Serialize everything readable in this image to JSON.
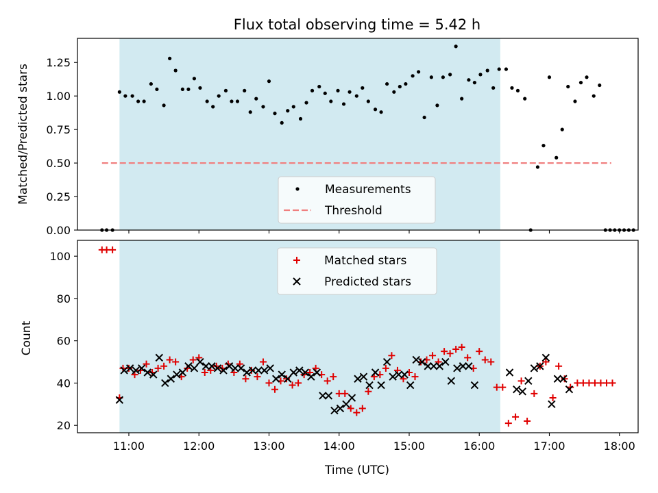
{
  "title": "Flux total observing time = 5.42 h",
  "xlabel": "Time (UTC)",
  "x_ticks": [
    "11:00",
    "12:00",
    "13:00",
    "14:00",
    "15:00",
    "16:00",
    "17:00",
    "18:00"
  ],
  "colors": {
    "observing_span": "#add8e6",
    "measurements": "#000000",
    "threshold": "#f07f7f",
    "matched": "#e00000",
    "predicted": "#000000"
  },
  "chart_data": [
    {
      "type": "scatter",
      "ylabel": "Matched/Predicted stars",
      "y_ticks": [
        "0.00",
        "0.25",
        "0.50",
        "0.75",
        "1.00",
        "1.25"
      ],
      "xlim": [
        "10:16",
        "18:16"
      ],
      "ylim": [
        0,
        1.43
      ],
      "observing_span": [
        "10:52",
        "16:18"
      ],
      "legend": {
        "placement": "lower center",
        "entries": [
          "Measurements",
          "Threshold"
        ]
      },
      "threshold": {
        "name": "Threshold",
        "value": 0.5,
        "x_range": [
          "10:37",
          "17:53"
        ]
      },
      "series": [
        {
          "name": "Measurements",
          "points": [
            [
              "10:37",
              0.0
            ],
            [
              "10:41",
              0.0
            ],
            [
              "10:46",
              0.0
            ],
            [
              "10:52",
              1.03
            ],
            [
              "10:57",
              1.0
            ],
            [
              "11:03",
              1.0
            ],
            [
              "11:08",
              0.96
            ],
            [
              "11:13",
              0.96
            ],
            [
              "11:19",
              1.09
            ],
            [
              "11:24",
              1.05
            ],
            [
              "11:30",
              0.93
            ],
            [
              "11:35",
              1.28
            ],
            [
              "11:40",
              1.19
            ],
            [
              "11:46",
              1.05
            ],
            [
              "11:51",
              1.05
            ],
            [
              "11:56",
              1.13
            ],
            [
              "12:01",
              1.06
            ],
            [
              "12:07",
              0.96
            ],
            [
              "12:12",
              0.92
            ],
            [
              "12:17",
              1.0
            ],
            [
              "12:23",
              1.04
            ],
            [
              "12:28",
              0.96
            ],
            [
              "12:33",
              0.96
            ],
            [
              "12:39",
              1.04
            ],
            [
              "12:44",
              0.88
            ],
            [
              "12:49",
              0.98
            ],
            [
              "12:55",
              0.92
            ],
            [
              "13:00",
              1.11
            ],
            [
              "13:05",
              0.87
            ],
            [
              "13:11",
              0.8
            ],
            [
              "13:16",
              0.89
            ],
            [
              "13:21",
              0.92
            ],
            [
              "13:27",
              0.83
            ],
            [
              "13:32",
              0.95
            ],
            [
              "13:37",
              1.04
            ],
            [
              "13:43",
              1.07
            ],
            [
              "13:48",
              1.02
            ],
            [
              "13:53",
              0.96
            ],
            [
              "13:59",
              1.04
            ],
            [
              "14:04",
              0.94
            ],
            [
              "14:09",
              1.03
            ],
            [
              "14:15",
              1.0
            ],
            [
              "14:20",
              1.06
            ],
            [
              "14:25",
              0.96
            ],
            [
              "14:31",
              0.9
            ],
            [
              "14:36",
              0.88
            ],
            [
              "14:41",
              1.09
            ],
            [
              "14:47",
              1.03
            ],
            [
              "14:52",
              1.07
            ],
            [
              "14:57",
              1.09
            ],
            [
              "15:03",
              1.15
            ],
            [
              "15:08",
              1.18
            ],
            [
              "15:13",
              0.84
            ],
            [
              "15:19",
              1.14
            ],
            [
              "15:24",
              0.93
            ],
            [
              "15:29",
              1.14
            ],
            [
              "15:35",
              1.16
            ],
            [
              "15:40",
              1.37
            ],
            [
              "15:45",
              0.98
            ],
            [
              "15:51",
              1.12
            ],
            [
              "15:56",
              1.1
            ],
            [
              "16:01",
              1.16
            ],
            [
              "16:07",
              1.19
            ],
            [
              "16:12",
              1.06
            ],
            [
              "16:17",
              1.2
            ],
            [
              "16:23",
              1.2
            ],
            [
              "16:28",
              1.06
            ],
            [
              "16:33",
              1.04
            ],
            [
              "16:39",
              0.98
            ],
            [
              "16:44",
              0.0
            ],
            [
              "16:50",
              0.47
            ],
            [
              "16:55",
              0.63
            ],
            [
              "17:00",
              1.14
            ],
            [
              "17:06",
              0.54
            ],
            [
              "17:11",
              0.75
            ],
            [
              "17:16",
              1.07
            ],
            [
              "17:22",
              0.96
            ],
            [
              "17:27",
              1.1
            ],
            [
              "17:32",
              1.14
            ],
            [
              "17:38",
              1.0
            ],
            [
              "17:43",
              1.08
            ],
            [
              "17:48",
              0.0
            ],
            [
              "17:52",
              0.0
            ],
            [
              "17:56",
              0.0
            ],
            [
              "18:00",
              0.0
            ],
            [
              "18:04",
              0.0
            ],
            [
              "18:08",
              0.0
            ],
            [
              "18:12",
              0.0
            ]
          ]
        }
      ]
    },
    {
      "type": "scatter",
      "ylabel": "Count",
      "y_ticks": [
        "20",
        "40",
        "60",
        "80",
        "100"
      ],
      "xlim": [
        "10:16",
        "18:16"
      ],
      "ylim": [
        16.5,
        107.5
      ],
      "observing_span": [
        "10:52",
        "16:18"
      ],
      "legend": {
        "placement": "upper center",
        "entries": [
          "Matched stars",
          "Predicted stars"
        ]
      },
      "series": [
        {
          "name": "Matched stars",
          "points": [
            [
              "10:37",
              103
            ],
            [
              "10:41",
              103
            ],
            [
              "10:46",
              103
            ],
            [
              "10:52",
              33
            ],
            [
              "10:55",
              47
            ],
            [
              "11:00",
              47
            ],
            [
              "11:05",
              44
            ],
            [
              "11:10",
              46
            ],
            [
              "11:15",
              49
            ],
            [
              "11:20",
              45
            ],
            [
              "11:25",
              47
            ],
            [
              "11:30",
              48
            ],
            [
              "11:35",
              51
            ],
            [
              "11:40",
              50
            ],
            [
              "11:45",
              43
            ],
            [
              "11:50",
              47
            ],
            [
              "11:55",
              51
            ],
            [
              "12:00",
              52
            ],
            [
              "12:05",
              45
            ],
            [
              "12:10",
              46
            ],
            [
              "12:15",
              48
            ],
            [
              "12:20",
              47
            ],
            [
              "12:25",
              49
            ],
            [
              "12:30",
              45
            ],
            [
              "12:35",
              49
            ],
            [
              "12:40",
              42
            ],
            [
              "12:45",
              46
            ],
            [
              "12:50",
              43
            ],
            [
              "12:55",
              50
            ],
            [
              "13:00",
              40
            ],
            [
              "13:05",
              37
            ],
            [
              "13:10",
              41
            ],
            [
              "13:15",
              42
            ],
            [
              "13:20",
              39
            ],
            [
              "13:25",
              40
            ],
            [
              "13:30",
              44
            ],
            [
              "13:35",
              45
            ],
            [
              "13:40",
              47
            ],
            [
              "13:45",
              44
            ],
            [
              "13:50",
              41
            ],
            [
              "13:55",
              43
            ],
            [
              "14:00",
              35
            ],
            [
              "14:05",
              35
            ],
            [
              "14:10",
              28
            ],
            [
              "14:15",
              26
            ],
            [
              "14:20",
              28
            ],
            [
              "14:25",
              36
            ],
            [
              "14:30",
              43
            ],
            [
              "14:35",
              44
            ],
            [
              "14:40",
              47
            ],
            [
              "14:45",
              53
            ],
            [
              "14:50",
              46
            ],
            [
              "14:55",
              42
            ],
            [
              "15:00",
              45
            ],
            [
              "15:05",
              43
            ],
            [
              "15:10",
              50
            ],
            [
              "15:15",
              51
            ],
            [
              "15:20",
              53
            ],
            [
              "15:25",
              50
            ],
            [
              "15:30",
              55
            ],
            [
              "15:35",
              54
            ],
            [
              "15:40",
              56
            ],
            [
              "15:45",
              57
            ],
            [
              "15:50",
              52
            ],
            [
              "15:55",
              47
            ],
            [
              "16:00",
              55
            ],
            [
              "16:05",
              51
            ],
            [
              "16:10",
              50
            ],
            [
              "16:15",
              38
            ],
            [
              "16:20",
              38
            ],
            [
              "16:25",
              21
            ],
            [
              "16:31",
              24
            ],
            [
              "16:36",
              41
            ],
            [
              "16:41",
              22
            ],
            [
              "16:47",
              35
            ],
            [
              "16:52",
              48
            ],
            [
              "16:57",
              50
            ],
            [
              "17:03",
              33
            ],
            [
              "17:08",
              48
            ],
            [
              "17:13",
              42
            ],
            [
              "17:18",
              38
            ],
            [
              "17:24",
              40
            ],
            [
              "17:29",
              40
            ],
            [
              "17:34",
              40
            ],
            [
              "17:39",
              40
            ],
            [
              "17:44",
              40
            ],
            [
              "17:49",
              40
            ],
            [
              "17:54",
              40
            ]
          ]
        },
        {
          "name": "Predicted stars",
          "points": [
            [
              "10:52",
              32
            ],
            [
              "10:56",
              46
            ],
            [
              "11:01",
              47
            ],
            [
              "11:06",
              46
            ],
            [
              "11:11",
              47
            ],
            [
              "11:16",
              45
            ],
            [
              "11:21",
              44
            ],
            [
              "11:26",
              52
            ],
            [
              "11:31",
              40
            ],
            [
              "11:36",
              42
            ],
            [
              "11:41",
              44
            ],
            [
              "11:46",
              45
            ],
            [
              "11:51",
              48
            ],
            [
              "11:56",
              47
            ],
            [
              "12:01",
              50
            ],
            [
              "12:06",
              48
            ],
            [
              "12:11",
              48
            ],
            [
              "12:16",
              47
            ],
            [
              "12:21",
              46
            ],
            [
              "12:26",
              48
            ],
            [
              "12:31",
              47
            ],
            [
              "12:36",
              47
            ],
            [
              "12:41",
              45
            ],
            [
              "12:46",
              46
            ],
            [
              "12:51",
              46
            ],
            [
              "12:56",
              46
            ],
            [
              "13:01",
              47
            ],
            [
              "13:06",
              42
            ],
            [
              "13:11",
              44
            ],
            [
              "13:16",
              42
            ],
            [
              "13:21",
              45
            ],
            [
              "13:26",
              46
            ],
            [
              "13:31",
              45
            ],
            [
              "13:36",
              43
            ],
            [
              "13:41",
              45
            ],
            [
              "13:46",
              34
            ],
            [
              "13:51",
              34
            ],
            [
              "13:56",
              27
            ],
            [
              "14:01",
              28
            ],
            [
              "14:06",
              30
            ],
            [
              "14:11",
              33
            ],
            [
              "14:16",
              42
            ],
            [
              "14:21",
              43
            ],
            [
              "14:26",
              39
            ],
            [
              "14:31",
              45
            ],
            [
              "14:36",
              39
            ],
            [
              "14:41",
              50
            ],
            [
              "14:46",
              43
            ],
            [
              "14:51",
              44
            ],
            [
              "14:56",
              44
            ],
            [
              "15:01",
              39
            ],
            [
              "15:06",
              51
            ],
            [
              "15:11",
              50
            ],
            [
              "15:16",
              48
            ],
            [
              "15:21",
              48
            ],
            [
              "15:26",
              48
            ],
            [
              "15:31",
              50
            ],
            [
              "15:36",
              41
            ],
            [
              "15:41",
              47
            ],
            [
              "15:46",
              48
            ],
            [
              "15:51",
              48
            ],
            [
              "15:56",
              39
            ],
            [
              "16:26",
              45
            ],
            [
              "16:32",
              37
            ],
            [
              "16:37",
              36
            ],
            [
              "16:42",
              41
            ],
            [
              "16:47",
              47
            ],
            [
              "16:52",
              48
            ],
            [
              "16:57",
              52
            ],
            [
              "17:02",
              30
            ],
            [
              "17:07",
              42
            ],
            [
              "17:12",
              42
            ],
            [
              "17:17",
              37
            ]
          ]
        }
      ]
    }
  ]
}
